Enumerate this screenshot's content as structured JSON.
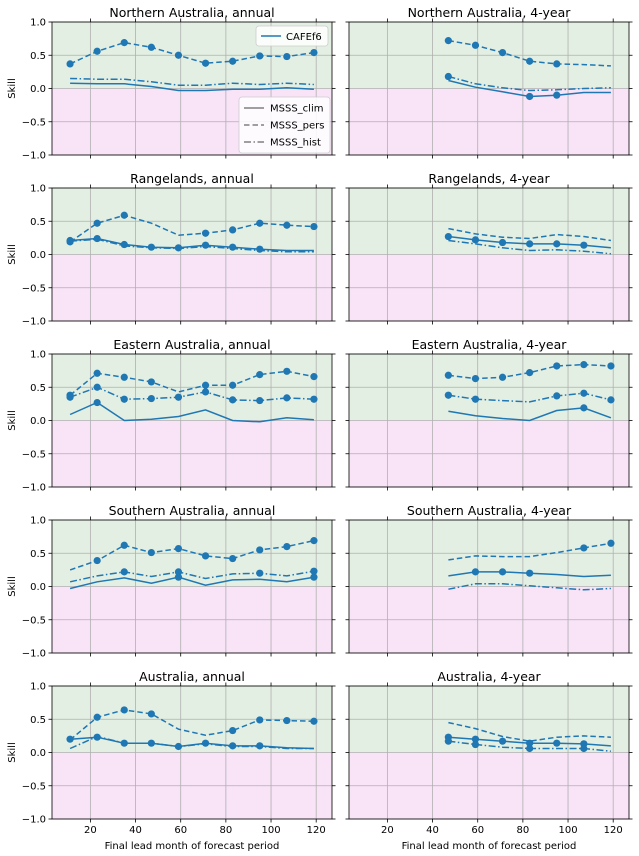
{
  "colors": {
    "line": "#1f77b4",
    "positive_shade": "#e3efe2",
    "negative_shade": "#f8e3f7",
    "grid": "#b0b0b0",
    "legend_style_line": "#808080"
  },
  "xlabel": "Final lead month of forecast period",
  "ylabel": "Skill",
  "xlim": [
    3,
    127
  ],
  "ylim": [
    -1.0,
    1.0
  ],
  "xticks": [
    20,
    40,
    60,
    80,
    100,
    120
  ],
  "yticks": [
    "1.0",
    "0.5",
    "0.0",
    "−0.5",
    "−1.0"
  ],
  "legend_model": "CAFEf6",
  "legend_styles": [
    "MSSS_clim",
    "MSSS_pers",
    "MSSS_hist"
  ],
  "chart_data": [
    {
      "type": "line",
      "title": "Northern Australia, annual",
      "x": [
        11,
        23,
        35,
        47,
        59,
        71,
        83,
        95,
        107,
        119
      ],
      "series": [
        {
          "name": "MSSS_clim",
          "values": [
            0.08,
            0.07,
            0.07,
            0.03,
            -0.03,
            -0.03,
            -0.01,
            -0.01,
            0.01,
            -0.01
          ]
        },
        {
          "name": "MSSS_pers",
          "values": [
            0.37,
            0.56,
            0.69,
            0.62,
            0.5,
            0.38,
            0.41,
            0.49,
            0.48,
            0.54
          ]
        },
        {
          "name": "MSSS_hist",
          "values": [
            0.15,
            0.14,
            0.14,
            0.1,
            0.05,
            0.05,
            0.08,
            0.06,
            0.08,
            0.06
          ]
        }
      ],
      "markers": {
        "MSSS_clim": [],
        "MSSS_pers": [
          11,
          23,
          35,
          47,
          59,
          71,
          83,
          95,
          107,
          119
        ],
        "MSSS_hist": []
      }
    },
    {
      "type": "line",
      "title": "Northern Australia, 4-year",
      "x": [
        47,
        59,
        71,
        83,
        95,
        107,
        119
      ],
      "series": [
        {
          "name": "MSSS_clim",
          "values": [
            0.12,
            0.02,
            -0.05,
            -0.12,
            -0.1,
            -0.06,
            -0.06
          ]
        },
        {
          "name": "MSSS_pers",
          "values": [
            0.72,
            0.65,
            0.54,
            0.41,
            0.37,
            0.36,
            0.34
          ]
        },
        {
          "name": "MSSS_hist",
          "values": [
            0.18,
            0.07,
            0.01,
            -0.03,
            -0.02,
            0.0,
            0.01
          ]
        }
      ],
      "markers": {
        "MSSS_clim": [
          83,
          95
        ],
        "MSSS_pers": [
          47,
          59,
          71,
          83,
          95
        ],
        "MSSS_hist": [
          47
        ]
      }
    },
    {
      "type": "line",
      "title": "Rangelands, annual",
      "x": [
        11,
        23,
        35,
        47,
        59,
        71,
        83,
        95,
        107,
        119
      ],
      "series": [
        {
          "name": "MSSS_clim",
          "values": [
            0.21,
            0.24,
            0.15,
            0.11,
            0.1,
            0.14,
            0.11,
            0.08,
            0.06,
            0.06
          ]
        },
        {
          "name": "MSSS_pers",
          "values": [
            0.19,
            0.47,
            0.59,
            0.47,
            0.29,
            0.32,
            0.37,
            0.47,
            0.44,
            0.42
          ]
        },
        {
          "name": "MSSS_hist",
          "values": [
            0.2,
            0.23,
            0.13,
            0.1,
            0.09,
            0.12,
            0.09,
            0.06,
            0.04,
            0.04
          ]
        }
      ],
      "markers": {
        "MSSS_clim": [
          11,
          23,
          35,
          47,
          59,
          71,
          83,
          95
        ],
        "MSSS_pers": [
          11,
          23,
          35,
          71,
          83,
          95,
          107,
          119
        ],
        "MSSS_hist": []
      }
    },
    {
      "type": "line",
      "title": "Rangelands, 4-year",
      "x": [
        47,
        59,
        71,
        83,
        95,
        107,
        119
      ],
      "series": [
        {
          "name": "MSSS_clim",
          "values": [
            0.27,
            0.22,
            0.18,
            0.16,
            0.16,
            0.14,
            0.1
          ]
        },
        {
          "name": "MSSS_pers",
          "values": [
            0.39,
            0.31,
            0.26,
            0.24,
            0.3,
            0.27,
            0.21
          ]
        },
        {
          "name": "MSSS_hist",
          "values": [
            0.21,
            0.16,
            0.1,
            0.06,
            0.07,
            0.05,
            0.01
          ]
        }
      ],
      "markers": {
        "MSSS_clim": [
          47,
          59,
          71,
          83,
          95,
          107
        ],
        "MSSS_pers": [],
        "MSSS_hist": []
      }
    },
    {
      "type": "line",
      "title": "Eastern Australia, annual",
      "x": [
        11,
        23,
        35,
        47,
        59,
        71,
        83,
        95,
        107,
        119
      ],
      "series": [
        {
          "name": "MSSS_clim",
          "values": [
            0.09,
            0.27,
            0.0,
            0.02,
            0.06,
            0.16,
            0.0,
            -0.02,
            0.04,
            0.01
          ]
        },
        {
          "name": "MSSS_pers",
          "values": [
            0.38,
            0.71,
            0.65,
            0.58,
            0.43,
            0.53,
            0.53,
            0.69,
            0.74,
            0.66
          ]
        },
        {
          "name": "MSSS_hist",
          "values": [
            0.35,
            0.5,
            0.32,
            0.33,
            0.35,
            0.43,
            0.31,
            0.3,
            0.34,
            0.32
          ]
        }
      ],
      "markers": {
        "MSSS_clim": [
          23
        ],
        "MSSS_pers": [
          11,
          23,
          35,
          47,
          71,
          83,
          95,
          107,
          119
        ],
        "MSSS_hist": [
          11,
          23,
          35,
          47,
          59,
          71,
          83,
          95,
          107,
          119
        ]
      }
    },
    {
      "type": "line",
      "title": "Eastern Australia, 4-year",
      "x": [
        47,
        59,
        71,
        83,
        95,
        107,
        119
      ],
      "series": [
        {
          "name": "MSSS_clim",
          "values": [
            0.14,
            0.07,
            0.03,
            0.0,
            0.15,
            0.19,
            0.04
          ]
        },
        {
          "name": "MSSS_pers",
          "values": [
            0.68,
            0.63,
            0.65,
            0.72,
            0.82,
            0.84,
            0.82
          ]
        },
        {
          "name": "MSSS_hist",
          "values": [
            0.38,
            0.32,
            0.3,
            0.28,
            0.37,
            0.41,
            0.31
          ]
        }
      ],
      "markers": {
        "MSSS_clim": [
          107
        ],
        "MSSS_pers": [
          47,
          59,
          71,
          83,
          95,
          107,
          119
        ],
        "MSSS_hist": [
          47,
          59,
          95,
          107,
          119
        ]
      }
    },
    {
      "type": "line",
      "title": "Southern Australia, annual",
      "x": [
        11,
        23,
        35,
        47,
        59,
        71,
        83,
        95,
        107,
        119
      ],
      "series": [
        {
          "name": "MSSS_clim",
          "values": [
            -0.03,
            0.07,
            0.13,
            0.05,
            0.14,
            0.02,
            0.1,
            0.11,
            0.07,
            0.14
          ]
        },
        {
          "name": "MSSS_pers",
          "values": [
            0.25,
            0.39,
            0.62,
            0.51,
            0.57,
            0.46,
            0.42,
            0.55,
            0.6,
            0.69
          ]
        },
        {
          "name": "MSSS_hist",
          "values": [
            0.07,
            0.16,
            0.22,
            0.15,
            0.22,
            0.12,
            0.19,
            0.2,
            0.16,
            0.23
          ]
        }
      ],
      "markers": {
        "MSSS_clim": [
          59,
          119
        ],
        "MSSS_pers": [
          23,
          35,
          47,
          59,
          71,
          83,
          95,
          107,
          119
        ],
        "MSSS_hist": [
          35,
          59,
          95,
          119
        ]
      }
    },
    {
      "type": "line",
      "title": "Southern Australia, 4-year",
      "x": [
        47,
        59,
        71,
        83,
        95,
        107,
        119
      ],
      "series": [
        {
          "name": "MSSS_clim",
          "values": [
            0.16,
            0.22,
            0.22,
            0.2,
            0.18,
            0.15,
            0.17
          ]
        },
        {
          "name": "MSSS_pers",
          "values": [
            0.4,
            0.46,
            0.45,
            0.45,
            0.51,
            0.58,
            0.65
          ]
        },
        {
          "name": "MSSS_hist",
          "values": [
            -0.04,
            0.04,
            0.04,
            0.01,
            -0.02,
            -0.05,
            -0.03
          ]
        }
      ],
      "markers": {
        "MSSS_clim": [
          59,
          71,
          83
        ],
        "MSSS_pers": [
          107,
          119
        ],
        "MSSS_hist": []
      }
    },
    {
      "type": "line",
      "title": "Australia, annual",
      "x": [
        11,
        23,
        35,
        47,
        59,
        71,
        83,
        95,
        107,
        119
      ],
      "series": [
        {
          "name": "MSSS_clim",
          "values": [
            0.2,
            0.23,
            0.14,
            0.14,
            0.09,
            0.14,
            0.1,
            0.1,
            0.07,
            0.06
          ]
        },
        {
          "name": "MSSS_pers",
          "values": [
            0.19,
            0.53,
            0.64,
            0.58,
            0.35,
            0.26,
            0.33,
            0.49,
            0.48,
            0.47
          ]
        },
        {
          "name": "MSSS_hist",
          "values": [
            0.06,
            0.24,
            0.14,
            0.14,
            0.09,
            0.13,
            0.09,
            0.09,
            0.06,
            0.06
          ]
        }
      ],
      "markers": {
        "MSSS_clim": [
          11,
          23,
          35,
          47,
          59,
          71,
          83,
          95
        ],
        "MSSS_pers": [
          23,
          35,
          47,
          83,
          95,
          107,
          119
        ],
        "MSSS_hist": []
      }
    },
    {
      "type": "line",
      "title": "Australia, 4-year",
      "x": [
        47,
        59,
        71,
        83,
        95,
        107,
        119
      ],
      "series": [
        {
          "name": "MSSS_clim",
          "values": [
            0.23,
            0.2,
            0.17,
            0.14,
            0.14,
            0.13,
            0.1
          ]
        },
        {
          "name": "MSSS_pers",
          "values": [
            0.45,
            0.36,
            0.24,
            0.17,
            0.23,
            0.25,
            0.23
          ]
        },
        {
          "name": "MSSS_hist",
          "values": [
            0.17,
            0.12,
            0.08,
            0.06,
            0.06,
            0.06,
            0.02
          ]
        }
      ],
      "markers": {
        "MSSS_clim": [
          47,
          59,
          71,
          83,
          95,
          107
        ],
        "MSSS_pers": [],
        "MSSS_hist": [
          47,
          59,
          83,
          107
        ]
      }
    }
  ]
}
